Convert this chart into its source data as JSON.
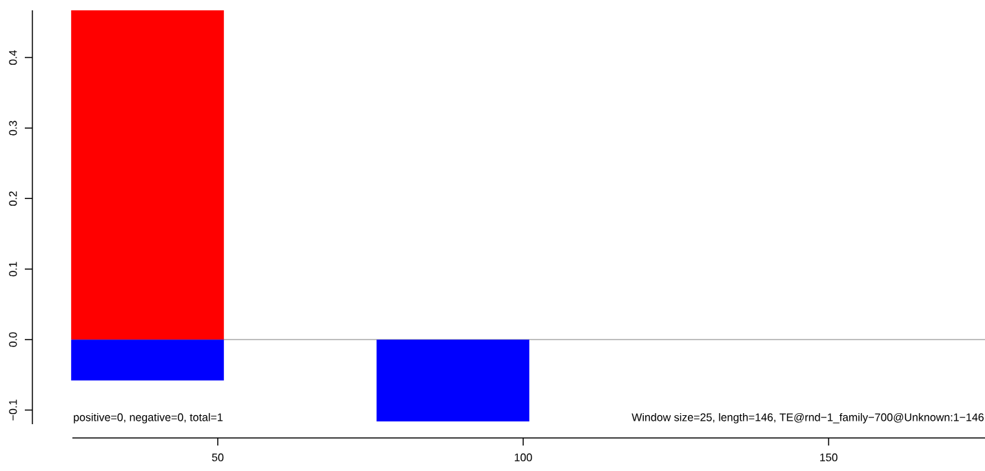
{
  "chart_data": {
    "type": "bar",
    "stacked": true,
    "x": [
      38.5,
      88.5
    ],
    "series": [
      {
        "color": "#ff0000",
        "values": [
          0.467,
          0
        ]
      },
      {
        "color": "#0000ff",
        "values": [
          -0.058,
          -0.116
        ]
      }
    ],
    "xlim": [
      26.2,
      175.6
    ],
    "ylim": [
      -0.12,
      0.467
    ],
    "xticks": [
      50,
      100,
      150
    ],
    "yticks": [
      {
        "value": -0.1,
        "label": "−0.1"
      },
      {
        "value": 0,
        "label": "0.0"
      },
      {
        "value": 0.1,
        "label": "0.1"
      },
      {
        "value": 0.2,
        "label": "0.2"
      },
      {
        "value": 0.3,
        "label": "0.3"
      },
      {
        "value": 0.4,
        "label": "0.4"
      }
    ],
    "ref_lines": [
      {
        "axis": "y",
        "value": 0,
        "color": "#808080"
      }
    ],
    "annotations": [
      "positive=0, negative=0, total=1",
      "Window size=25, length=146, TE@rnd−1_family−700@Unknown:1−146"
    ]
  }
}
